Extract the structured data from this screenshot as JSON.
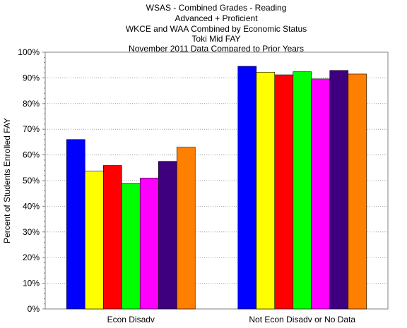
{
  "chart_data": {
    "type": "bar",
    "title_lines": [
      "WSAS - Combined Grades - Reading",
      "Advanced + Proficient",
      "WKCE and WAA Combined by Economic Status",
      "Toki Mid FAY",
      "November 2011 Data  Compared to Prior Years"
    ],
    "ylabel": "Percent of Students Enrolled FAY",
    "xlabel": "",
    "ylim": [
      0,
      100
    ],
    "yticks": [
      "0%",
      "10%",
      "20%",
      "30%",
      "40%",
      "50%",
      "60%",
      "70%",
      "80%",
      "90%",
      "100%"
    ],
    "grid": true,
    "legend": "none",
    "categories": [
      "Econ Disadv",
      "Not Econ Disadv or No Data"
    ],
    "series": [
      {
        "color": "#0000ff",
        "values": [
          66.0,
          94.5
        ]
      },
      {
        "color": "#ffff00",
        "values": [
          53.7,
          92.2
        ]
      },
      {
        "color": "#ff0000",
        "values": [
          55.9,
          91.2
        ]
      },
      {
        "color": "#00ff00",
        "values": [
          48.8,
          92.4
        ]
      },
      {
        "color": "#ff00ff",
        "values": [
          51.0,
          89.6
        ]
      },
      {
        "color": "#3f007f",
        "values": [
          57.5,
          92.9
        ]
      },
      {
        "color": "#ff7f00",
        "values": [
          63.0,
          91.5
        ]
      }
    ]
  }
}
